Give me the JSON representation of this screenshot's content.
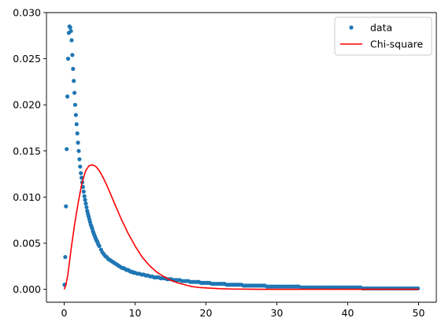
{
  "chart_data": {
    "type": "scatter",
    "title": "",
    "xlabel": "",
    "ylabel": "",
    "xlim": [
      -2.5,
      52.5
    ],
    "ylim": [
      -0.0014,
      0.03
    ],
    "grid": false,
    "legend_position": "top-right",
    "xticks": [
      0,
      10,
      20,
      30,
      40,
      50
    ],
    "xtick_labels": [
      "0",
      "10",
      "20",
      "30",
      "40",
      "50"
    ],
    "yticks": [
      0.0,
      0.005,
      0.01,
      0.015,
      0.02,
      0.025,
      0.03
    ],
    "ytick_labels": [
      "0.000",
      "0.005",
      "0.010",
      "0.015",
      "0.020",
      "0.025",
      "0.030"
    ],
    "colors": {
      "data": "#1f77b4",
      "chi_square": "#ff0000"
    },
    "series": [
      {
        "name": "data",
        "kind": "points",
        "x": [
          0.05,
          0.15,
          0.25,
          0.35,
          0.45,
          0.55,
          0.65,
          0.75,
          0.85,
          0.95,
          1.05,
          1.15,
          1.25,
          1.35,
          1.45,
          1.55,
          1.65,
          1.75,
          1.85,
          1.95,
          2.05,
          2.15,
          2.25,
          2.35,
          2.45,
          2.55,
          2.65,
          2.75,
          2.85,
          2.95,
          3.05,
          3.15,
          3.25,
          3.35,
          3.45,
          3.55,
          3.65,
          3.75,
          3.85,
          3.95,
          4.05,
          4.15,
          4.25,
          4.35,
          4.45,
          4.55,
          4.65,
          4.75,
          4.85,
          4.95,
          5.2,
          5.4,
          5.6,
          5.8,
          6.0,
          6.2,
          6.4,
          6.6,
          6.8,
          7.0,
          7.2,
          7.4,
          7.6,
          7.8,
          8.0,
          8.2,
          8.4,
          8.6,
          8.8,
          9.0,
          9.2,
          9.4,
          9.6,
          9.8,
          10.0,
          10.3,
          10.6,
          10.9,
          11.2,
          11.5,
          11.8,
          12.1,
          12.4,
          12.7,
          13.0,
          13.3,
          13.6,
          13.9,
          14.2,
          14.5,
          14.8,
          15.1,
          15.4,
          15.7,
          16.0,
          16.3,
          16.6,
          16.9,
          17.2,
          17.5,
          17.8,
          18.1,
          18.4,
          18.7,
          19.0,
          19.3,
          19.6,
          19.9,
          20.2,
          20.5,
          20.8,
          21.1,
          21.4,
          21.7,
          22.0,
          22.3,
          22.6,
          22.9,
          23.2,
          23.5,
          23.8,
          24.1,
          24.4,
          24.7,
          25.0,
          25.3,
          25.6,
          25.9,
          26.2,
          26.5,
          26.8,
          27.1,
          27.4,
          27.7,
          28.0,
          28.3,
          28.6,
          28.9,
          29.2,
          29.5,
          29.8,
          30.1,
          30.4,
          30.7,
          31.0,
          31.3,
          31.6,
          31.9,
          32.2,
          32.5,
          32.8,
          33.1,
          33.4,
          33.7,
          34.0,
          34.3,
          34.6,
          34.9,
          35.2,
          35.5,
          35.8,
          36.1,
          36.4,
          36.7,
          37.0,
          37.3,
          37.6,
          37.9,
          38.2,
          38.5,
          38.8,
          39.1,
          39.4,
          39.7,
          40.0,
          40.3,
          40.6,
          40.9,
          41.2,
          41.5,
          41.8,
          42.1,
          42.4,
          42.7,
          43.0,
          43.3,
          43.6,
          43.9,
          44.2,
          44.5,
          44.8,
          45.1,
          45.4,
          45.7,
          46.0,
          46.3,
          46.6,
          46.9,
          47.2,
          47.5,
          47.8,
          48.1,
          48.4,
          48.7,
          49.0,
          49.3,
          49.6,
          49.9
        ],
        "y": [
          0.0005,
          0.0035,
          0.009,
          0.0152,
          0.0209,
          0.025,
          0.0278,
          0.0285,
          0.0284,
          0.028,
          0.027,
          0.0254,
          0.0239,
          0.0226,
          0.0213,
          0.02,
          0.0189,
          0.0179,
          0.0169,
          0.0159,
          0.015,
          0.0141,
          0.0133,
          0.0126,
          0.0121,
          0.0116,
          0.0111,
          0.0106,
          0.0101,
          0.0097,
          0.0093,
          0.0089,
          0.0085,
          0.0082,
          0.0079,
          0.0076,
          0.0073,
          0.007,
          0.0068,
          0.0066,
          0.0063,
          0.0061,
          0.0059,
          0.0057,
          0.0055,
          0.0053,
          0.0052,
          0.005,
          0.0048,
          0.0047,
          0.0043,
          0.004,
          0.0038,
          0.0036,
          0.0035,
          0.0033,
          0.0032,
          0.0031,
          0.003,
          0.0029,
          0.0028,
          0.0027,
          0.0026,
          0.0025,
          0.0024,
          0.0023,
          0.0023,
          0.0022,
          0.0021,
          0.0021,
          0.002,
          0.0019,
          0.0019,
          0.0018,
          0.0018,
          0.0017,
          0.0017,
          0.0016,
          0.0016,
          0.0015,
          0.0015,
          0.0014,
          0.0014,
          0.0013,
          0.0013,
          0.0013,
          0.0012,
          0.0012,
          0.0012,
          0.0011,
          0.0011,
          0.0011,
          0.001,
          0.001,
          0.001,
          0.001,
          0.0009,
          0.0009,
          0.0009,
          0.0009,
          0.0008,
          0.0008,
          0.0008,
          0.0008,
          0.0008,
          0.0007,
          0.0007,
          0.0007,
          0.0007,
          0.0007,
          0.0006,
          0.0006,
          0.0006,
          0.0006,
          0.0006,
          0.0006,
          0.0006,
          0.0005,
          0.0005,
          0.0005,
          0.0005,
          0.0005,
          0.0005,
          0.0005,
          0.0005,
          0.0004,
          0.0004,
          0.0004,
          0.0004,
          0.0004,
          0.0004,
          0.0004,
          0.0004,
          0.0004,
          0.0004,
          0.0004,
          0.0003,
          0.0003,
          0.0003,
          0.0003,
          0.0003,
          0.0003,
          0.0003,
          0.0003,
          0.0003,
          0.0003,
          0.0003,
          0.0003,
          0.0003,
          0.0003,
          0.0003,
          0.0003,
          0.0002,
          0.0002,
          0.0002,
          0.0002,
          0.0002,
          0.0002,
          0.0002,
          0.0002,
          0.0002,
          0.0002,
          0.0002,
          0.0002,
          0.0002,
          0.0002,
          0.0002,
          0.0002,
          0.0002,
          0.0002,
          0.0002,
          0.0002,
          0.0002,
          0.0002,
          0.0002,
          0.0002,
          0.0002,
          0.0002,
          0.0002,
          0.0002,
          0.0002,
          0.0001,
          0.0001,
          0.0001,
          0.0001,
          0.0001,
          0.0001,
          0.0001,
          0.0001,
          0.0001,
          0.0001,
          0.0001,
          0.0001,
          0.0001,
          0.0001,
          0.0001,
          0.0001,
          0.0001,
          0.0001,
          0.0001,
          0.0001,
          0.0001,
          0.0001,
          0.0001,
          0.0001,
          0.0001,
          0.0001,
          0.0001
        ]
      },
      {
        "name": "Chi-square",
        "kind": "line",
        "x": [
          0,
          0.25,
          0.5,
          0.75,
          1.0,
          1.5,
          2.0,
          2.5,
          3.0,
          3.5,
          4.0,
          4.5,
          5.0,
          5.5,
          6.0,
          6.5,
          7.0,
          7.5,
          8.0,
          9.0,
          10.0,
          11.0,
          12.0,
          13.0,
          14.0,
          15.0,
          16.0,
          17.0,
          18.0,
          19.0,
          20.0,
          22.0,
          24.0,
          26.0,
          28.0,
          30.0,
          35.0,
          40.0,
          45.0,
          50.0
        ],
        "y": [
          0.0,
          0.0005,
          0.0015,
          0.003,
          0.0045,
          0.0072,
          0.0095,
          0.0115,
          0.0128,
          0.0134,
          0.0135,
          0.0133,
          0.0128,
          0.0121,
          0.0113,
          0.0104,
          0.0095,
          0.0086,
          0.0077,
          0.0061,
          0.0047,
          0.0035,
          0.0026,
          0.0019,
          0.0014,
          0.001,
          0.0007,
          0.0005,
          0.0003,
          0.0002,
          0.00015,
          7e-05,
          3e-05,
          1e-05,
          0.0,
          0.0,
          0.0,
          0.0,
          0.0,
          0.0
        ]
      }
    ]
  }
}
